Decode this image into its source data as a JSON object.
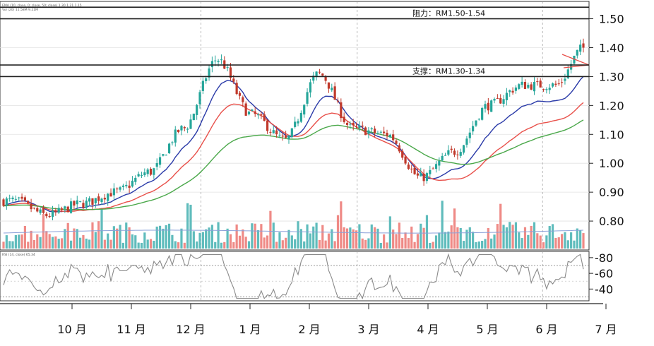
{
  "legend": {
    "ema_line": "EMA (10, close, 0; close, 50; close) 1.30 1.21 1.15",
    "vol_line": "Vol (20) 11.58M 9.21M",
    "rsi_line": "RSI (14, close) 65.34"
  },
  "chart_data": {
    "type": "candlestick",
    "title": "",
    "x_labels": [
      "10月",
      "11月",
      "12月",
      "1月",
      "2月",
      "3月",
      "4月",
      "5月",
      "6月",
      "7月"
    ],
    "y_ticks": [
      0.8,
      0.9,
      1.0,
      1.1,
      1.2,
      1.3,
      1.4,
      1.5
    ],
    "y_tick_labels": [
      "0.80",
      "0.90",
      "1.00",
      "1.10",
      "1.20",
      "1.30",
      "1.40",
      "1.50"
    ],
    "ylim": [
      0.7,
      1.56
    ],
    "price_path_by_month": [
      {
        "month": 0,
        "close": 0.87
      },
      {
        "month": 0.5,
        "close": 0.82
      },
      {
        "month": 1.0,
        "close": 0.86
      },
      {
        "month": 1.5,
        "close": 0.9
      },
      {
        "month": 2.0,
        "close": 0.97
      },
      {
        "month": 2.5,
        "close": 1.12
      },
      {
        "month": 3.0,
        "close": 1.36
      },
      {
        "month": 3.5,
        "close": 1.17
      },
      {
        "month": 4.0,
        "close": 1.08
      },
      {
        "month": 4.5,
        "close": 1.31
      },
      {
        "month": 5.0,
        "close": 1.12
      },
      {
        "month": 5.5,
        "close": 1.1
      },
      {
        "month": 6.0,
        "close": 0.95
      },
      {
        "month": 6.5,
        "close": 1.04
      },
      {
        "month": 7.0,
        "close": 1.2
      },
      {
        "month": 7.5,
        "close": 1.27
      },
      {
        "month": 8.0,
        "close": 1.27
      },
      {
        "month": 8.4,
        "close": 1.4
      }
    ],
    "ema_series": [
      {
        "name": "EMA 10",
        "color": "#2a3aa8",
        "last": 1.3
      },
      {
        "name": "EMA 20",
        "color": "#e8504a",
        "last": 1.21
      },
      {
        "name": "EMA 50",
        "color": "#4aa84a",
        "last": 1.15
      }
    ],
    "resistance_zone": {
      "label": "阻力：RM1.50-1.54",
      "low": 1.5,
      "high": 1.54
    },
    "support_zone": {
      "label": "支撑：RM1.30-1.34",
      "low": 1.3,
      "high": 1.34
    },
    "rsi": {
      "tick_labels": [
        "80",
        "60",
        "40"
      ],
      "ticks": [
        80,
        60,
        40
      ],
      "levels": [
        70,
        30
      ],
      "last": 65.34
    },
    "volume": {
      "colors": {
        "up": "#5fbcbc",
        "down": "#ef8a86"
      }
    },
    "colors": {
      "up": "#26a69a",
      "down": "#c0392b",
      "rsi_line": "#8a8a8a",
      "grid": "#c8c8c8"
    }
  }
}
